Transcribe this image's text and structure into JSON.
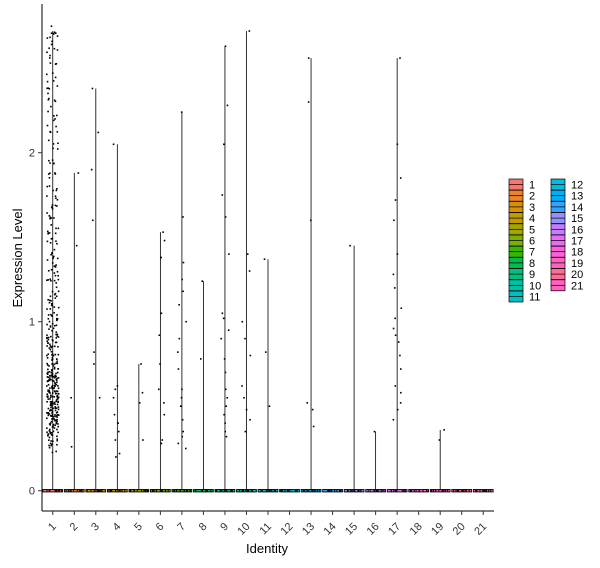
{
  "chart_data": {
    "type": "violin",
    "xlabel": "Identity",
    "ylabel": "Expression Level",
    "categories": [
      "1",
      "2",
      "3",
      "4",
      "5",
      "6",
      "7",
      "8",
      "9",
      "10",
      "11",
      "12",
      "13",
      "14",
      "15",
      "16",
      "17",
      "18",
      "19",
      "20",
      "21"
    ],
    "ylim": [
      -0.12,
      2.88
    ],
    "yticks": [
      0,
      1,
      2
    ],
    "grid": false,
    "legend_position": "right",
    "legend_columns": 2,
    "colors": [
      "#F8766D",
      "#EA8331",
      "#D89000",
      "#C09B00",
      "#A3A500",
      "#7CAE00",
      "#39B600",
      "#00BB4E",
      "#00BF7D",
      "#00C1A3",
      "#00BFC4",
      "#00BAE0",
      "#00B0F6",
      "#35A2FF",
      "#9590FF",
      "#C77CFF",
      "#E76BF3",
      "#FA62DB",
      "#FF62BC",
      "#FF6C91",
      "#FF61C3"
    ],
    "max_values": [
      2.72,
      1.88,
      2.38,
      2.05,
      0.75,
      1.53,
      2.24,
      1.24,
      2.63,
      2.72,
      1.37,
      0.0,
      2.56,
      0.0,
      1.45,
      0.35,
      2.56,
      0.0,
      0.36,
      0.0,
      0.0
    ],
    "positive_points": [
      [
        0.25,
        0.28,
        0.3,
        0.32,
        0.35,
        0.36,
        0.38,
        0.4,
        0.41,
        0.42,
        0.43,
        0.44,
        0.45,
        0.46,
        0.47,
        0.48,
        0.49,
        0.5,
        0.51,
        0.52,
        0.53,
        0.54,
        0.55,
        0.56,
        0.57,
        0.58,
        0.59,
        0.6,
        0.61,
        0.62,
        0.63,
        0.64,
        0.65,
        0.66,
        0.67,
        0.68,
        0.7,
        0.71,
        0.72,
        0.73,
        0.75,
        0.76,
        0.78,
        0.8,
        0.82,
        0.84,
        0.86,
        0.88,
        0.9,
        0.92,
        0.95,
        0.98,
        1.0,
        1.03,
        1.06,
        1.1,
        1.14,
        1.18,
        1.22,
        1.26,
        1.3,
        1.35,
        1.4,
        1.45,
        1.5,
        1.55,
        1.6,
        1.66,
        1.72,
        1.8,
        1.88,
        1.95,
        2.05,
        2.15,
        2.22,
        2.3,
        2.38,
        2.45,
        2.55,
        2.62,
        2.68,
        2.72
      ],
      [
        0.26,
        0.55,
        1.45,
        1.88
      ],
      [
        0.55,
        0.75,
        0.82,
        1.6,
        1.9,
        2.12,
        2.38
      ],
      [
        0.2,
        0.22,
        0.3,
        0.35,
        0.4,
        0.45,
        0.55,
        0.6,
        0.62,
        2.05
      ],
      [
        0.3,
        0.52,
        0.58,
        0.75
      ],
      [
        0.28,
        0.3,
        0.45,
        0.52,
        0.6,
        0.75,
        0.92,
        1.05,
        1.38,
        1.48,
        1.53
      ],
      [
        0.25,
        0.28,
        0.32,
        0.35,
        0.42,
        0.5,
        0.55,
        0.6,
        0.72,
        0.82,
        0.9,
        1.0,
        1.1,
        1.18,
        1.25,
        1.35,
        1.62,
        2.24
      ],
      [
        0.78,
        1.24
      ],
      [
        0.32,
        0.35,
        0.4,
        0.45,
        0.5,
        0.55,
        0.6,
        0.7,
        0.78,
        0.9,
        0.95,
        1.02,
        1.05,
        1.4,
        1.62,
        1.75,
        2.05,
        2.28,
        2.63
      ],
      [
        0.35,
        0.42,
        0.48,
        0.55,
        0.62,
        0.8,
        0.9,
        1.0,
        1.3,
        1.4,
        2.72
      ],
      [
        0.5,
        0.82,
        1.37
      ],
      [],
      [
        0.38,
        0.48,
        0.52,
        1.6,
        2.3,
        2.56
      ],
      [],
      [
        1.45
      ],
      [
        0.35
      ],
      [
        0.42,
        0.48,
        0.52,
        0.58,
        0.62,
        0.72,
        0.8,
        0.88,
        0.92,
        0.96,
        1.02,
        1.08,
        1.2,
        1.28,
        1.4,
        1.6,
        1.72,
        1.85,
        2.05,
        2.56
      ],
      [],
      [
        0.3,
        0.36
      ],
      [],
      []
    ]
  }
}
